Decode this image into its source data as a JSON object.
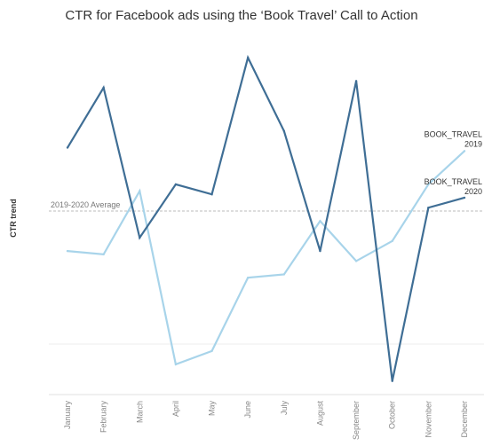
{
  "chart_data": {
    "type": "line",
    "title": "CTR for Facebook ads using the ‘Book Travel’ Call to Action",
    "ylabel": "CTR trend",
    "xlabel": "",
    "categories": [
      "January",
      "February",
      "March",
      "April",
      "May",
      "June",
      "July",
      "August",
      "September",
      "October",
      "November",
      "December"
    ],
    "ylim": [
      0,
      100
    ],
    "grid": false,
    "series": [
      {
        "name": "BOOK_TRAVEL 2019",
        "label_lines": [
          "BOOK_TRAVEL",
          "2019"
        ],
        "color": "#a8d4ea",
        "values": [
          38,
          37,
          56,
          4,
          8,
          30,
          31,
          47,
          35,
          41,
          58,
          68
        ]
      },
      {
        "name": "BOOK_TRAVEL 2020",
        "label_lines": [
          "BOOK_TRAVEL",
          "2020"
        ],
        "color": "#3f6e95",
        "values": [
          69,
          87,
          42,
          58,
          55,
          96,
          74,
          38,
          89,
          -1,
          51,
          54
        ]
      }
    ],
    "reference_line": {
      "label": "2019-2020 Average",
      "value": 50,
      "color": "#bbbbbb"
    }
  }
}
